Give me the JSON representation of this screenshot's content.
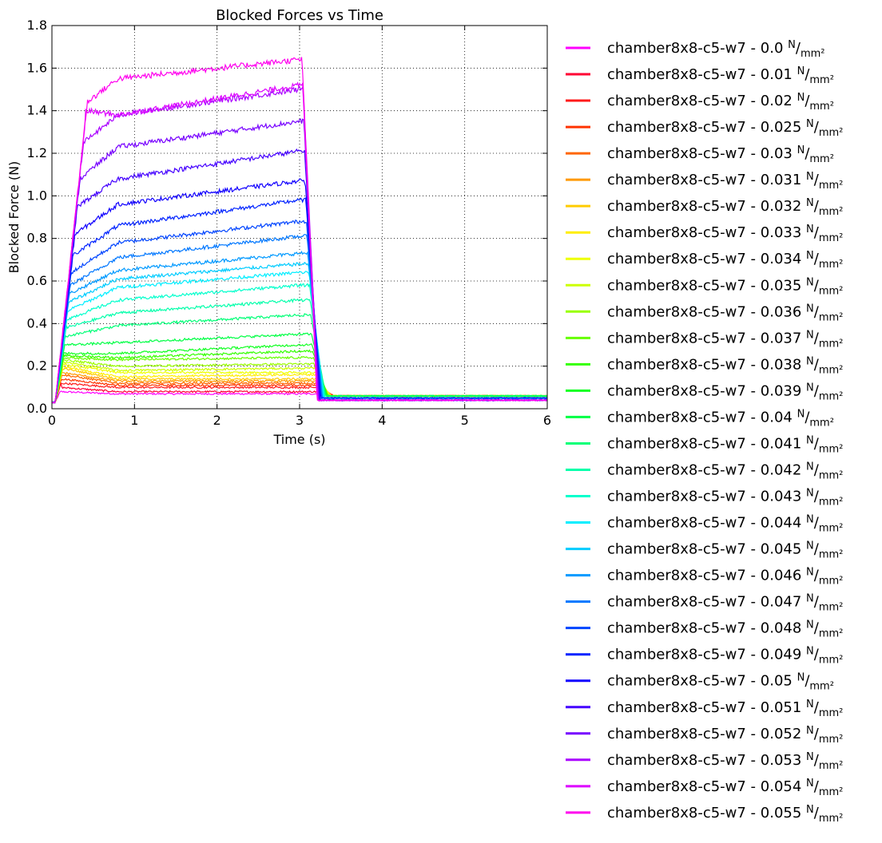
{
  "chart_data": {
    "type": "line",
    "title": "Blocked Forces vs Time",
    "xlabel": "Time (s)",
    "ylabel": "Blocked Force (N)",
    "xlim": [
      0,
      6
    ],
    "ylim": [
      0,
      1.8
    ],
    "x_ticks": [
      "0",
      "1",
      "2",
      "3",
      "4",
      "5",
      "6"
    ],
    "y_ticks": [
      "0.0",
      "0.2",
      "0.4",
      "0.6",
      "0.8",
      "1.0",
      "1.2",
      "1.4",
      "1.6",
      "1.8"
    ],
    "grid": true,
    "legend_placement": "outside-right",
    "unit_label": {
      "numerator": "N",
      "denominator": "mm²"
    },
    "series": [
      {
        "name": "chamber8x8-c5-w7 - 0.0",
        "color": "#ff00ff",
        "rise": 0.08,
        "peak": 0.08,
        "plateau": 0.07,
        "end": 0.07,
        "tail": 0.06
      },
      {
        "name": "chamber8x8-c5-w7 - 0.01",
        "color": "#ff0033",
        "rise": 0.12,
        "peak": 0.1,
        "plateau": 0.08,
        "end": 0.08,
        "tail": 0.06
      },
      {
        "name": "chamber8x8-c5-w7 - 0.02",
        "color": "#ff1a1a",
        "rise": 0.12,
        "peak": 0.12,
        "plateau": 0.1,
        "end": 0.1,
        "tail": 0.06
      },
      {
        "name": "chamber8x8-c5-w7 - 0.025",
        "color": "#ff3300",
        "rise": 0.14,
        "peak": 0.14,
        "plateau": 0.11,
        "end": 0.11,
        "tail": 0.06
      },
      {
        "name": "chamber8x8-c5-w7 - 0.03",
        "color": "#ff6600",
        "rise": 0.15,
        "peak": 0.16,
        "plateau": 0.12,
        "end": 0.12,
        "tail": 0.06
      },
      {
        "name": "chamber8x8-c5-w7 - 0.031",
        "color": "#ff9900",
        "rise": 0.16,
        "peak": 0.17,
        "plateau": 0.13,
        "end": 0.13,
        "tail": 0.06
      },
      {
        "name": "chamber8x8-c5-w7 - 0.032",
        "color": "#ffcc00",
        "rise": 0.17,
        "peak": 0.19,
        "plateau": 0.14,
        "end": 0.14,
        "tail": 0.06
      },
      {
        "name": "chamber8x8-c5-w7 - 0.033",
        "color": "#ffee00",
        "rise": 0.18,
        "peak": 0.2,
        "plateau": 0.15,
        "end": 0.16,
        "tail": 0.06
      },
      {
        "name": "chamber8x8-c5-w7 - 0.034",
        "color": "#eeff00",
        "rise": 0.19,
        "peak": 0.21,
        "plateau": 0.17,
        "end": 0.17,
        "tail": 0.06
      },
      {
        "name": "chamber8x8-c5-w7 - 0.035",
        "color": "#ccff00",
        "rise": 0.2,
        "peak": 0.22,
        "plateau": 0.18,
        "end": 0.19,
        "tail": 0.06
      },
      {
        "name": "chamber8x8-c5-w7 - 0.036",
        "color": "#99ff00",
        "rise": 0.21,
        "peak": 0.23,
        "plateau": 0.2,
        "end": 0.21,
        "tail": 0.06
      },
      {
        "name": "chamber8x8-c5-w7 - 0.037",
        "color": "#66ff00",
        "rise": 0.22,
        "peak": 0.24,
        "plateau": 0.23,
        "end": 0.24,
        "tail": 0.06
      },
      {
        "name": "chamber8x8-c5-w7 - 0.038",
        "color": "#33ff00",
        "rise": 0.24,
        "peak": 0.25,
        "plateau": 0.24,
        "end": 0.27,
        "tail": 0.06
      },
      {
        "name": "chamber8x8-c5-w7 - 0.039",
        "color": "#11ff22",
        "rise": 0.26,
        "peak": 0.26,
        "plateau": 0.26,
        "end": 0.3,
        "tail": 0.06
      },
      {
        "name": "chamber8x8-c5-w7 - 0.04",
        "color": "#00ff44",
        "rise": 0.3,
        "peak": 0.3,
        "plateau": 0.31,
        "end": 0.35,
        "tail": 0.06
      },
      {
        "name": "chamber8x8-c5-w7 - 0.041",
        "color": "#00ff77",
        "rise": 0.34,
        "peak": 0.34,
        "plateau": 0.39,
        "end": 0.44,
        "tail": 0.06
      },
      {
        "name": "chamber8x8-c5-w7 - 0.042",
        "color": "#00ffaa",
        "rise": 0.38,
        "peak": 0.38,
        "plateau": 0.45,
        "end": 0.51,
        "tail": 0.05
      },
      {
        "name": "chamber8x8-c5-w7 - 0.043",
        "color": "#00ffcc",
        "rise": 0.42,
        "peak": 0.42,
        "plateau": 0.51,
        "end": 0.58,
        "tail": 0.05
      },
      {
        "name": "chamber8x8-c5-w7 - 0.044",
        "color": "#00eeff",
        "rise": 0.46,
        "peak": 0.46,
        "plateau": 0.57,
        "end": 0.64,
        "tail": 0.05
      },
      {
        "name": "chamber8x8-c5-w7 - 0.045",
        "color": "#00ccff",
        "rise": 0.5,
        "peak": 0.5,
        "plateau": 0.61,
        "end": 0.68,
        "tail": 0.05
      },
      {
        "name": "chamber8x8-c5-w7 - 0.046",
        "color": "#0099ff",
        "rise": 0.54,
        "peak": 0.54,
        "plateau": 0.65,
        "end": 0.73,
        "tail": 0.05
      },
      {
        "name": "chamber8x8-c5-w7 - 0.047",
        "color": "#0077ff",
        "rise": 0.58,
        "peak": 0.58,
        "plateau": 0.71,
        "end": 0.81,
        "tail": 0.05
      },
      {
        "name": "chamber8x8-c5-w7 - 0.048",
        "color": "#0044ff",
        "rise": 0.64,
        "peak": 0.64,
        "plateau": 0.78,
        "end": 0.88,
        "tail": 0.05
      },
      {
        "name": "chamber8x8-c5-w7 - 0.049",
        "color": "#0022ff",
        "rise": 0.72,
        "peak": 0.72,
        "plateau": 0.86,
        "end": 0.98,
        "tail": 0.05
      },
      {
        "name": "chamber8x8-c5-w7 - 0.05",
        "color": "#1100ff",
        "rise": 0.82,
        "peak": 0.82,
        "plateau": 0.96,
        "end": 1.07,
        "tail": 0.04
      },
      {
        "name": "chamber8x8-c5-w7 - 0.051",
        "color": "#4400ff",
        "rise": 0.95,
        "peak": 0.95,
        "plateau": 1.08,
        "end": 1.21,
        "tail": 0.04
      },
      {
        "name": "chamber8x8-c5-w7 - 0.052",
        "color": "#7700ff",
        "rise": 1.08,
        "peak": 1.08,
        "plateau": 1.23,
        "end": 1.35,
        "tail": 0.04
      },
      {
        "name": "chamber8x8-c5-w7 - 0.053",
        "color": "#aa00ff",
        "rise": 1.25,
        "peak": 1.25,
        "plateau": 1.38,
        "end": 1.5,
        "tail": 0.04
      },
      {
        "name": "chamber8x8-c5-w7 - 0.054",
        "color": "#dd00ff",
        "rise": 1.35,
        "peak": 1.4,
        "plateau": 1.38,
        "end": 1.52,
        "tail": 0.04
      },
      {
        "name": "chamber8x8-c5-w7 - 0.055",
        "color": "#ff00ee",
        "rise": 1.42,
        "peak": 1.44,
        "plateau": 1.55,
        "end": 1.64,
        "tail": 0.04
      }
    ]
  }
}
